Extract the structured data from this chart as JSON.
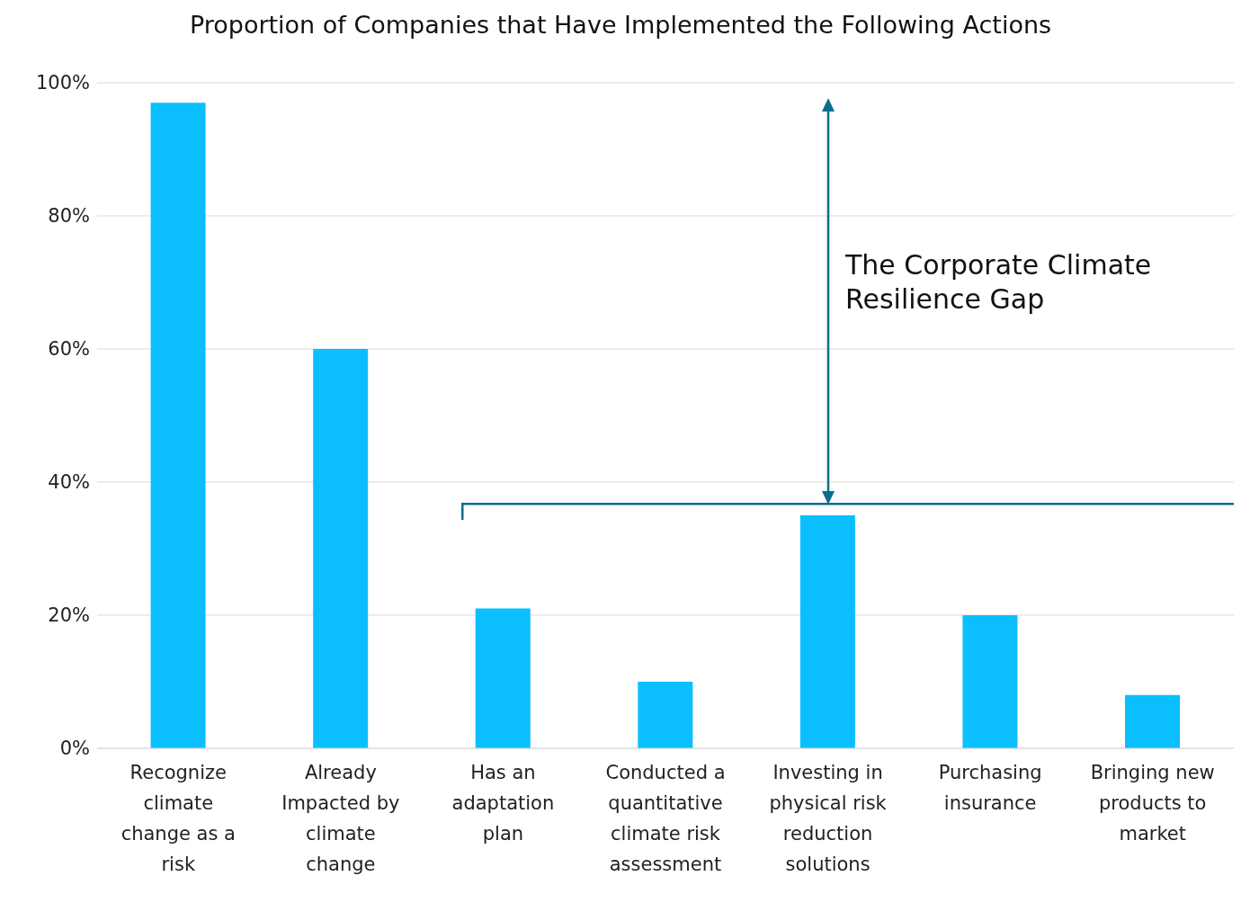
{
  "chart_data": {
    "type": "bar",
    "title": "Proportion of Companies that Have Implemented the Following Actions",
    "categories": [
      "Recognize climate change as a risk",
      "Already Impacted by climate change",
      "Has an adaptation plan",
      "Conducted a quantitative climate risk assessment",
      "Investing in physical risk reduction solutions",
      "Purchasing insurance",
      "Bringing new products to market"
    ],
    "values": [
      97,
      60,
      21,
      10,
      35,
      20,
      8
    ],
    "color": "#0bbfff",
    "ylim": [
      0,
      100
    ],
    "yticks": [
      {
        "value": 0,
        "label": "0%"
      },
      {
        "value": 20,
        "label": "20%"
      },
      {
        "value": 40,
        "label": "40%"
      },
      {
        "value": 60,
        "label": "60%"
      },
      {
        "value": 80,
        "label": "80%"
      },
      {
        "value": 100,
        "label": "100%"
      }
    ],
    "grid": "y",
    "annotations": [
      "The Corporate Climate Resilience Gap"
    ]
  }
}
